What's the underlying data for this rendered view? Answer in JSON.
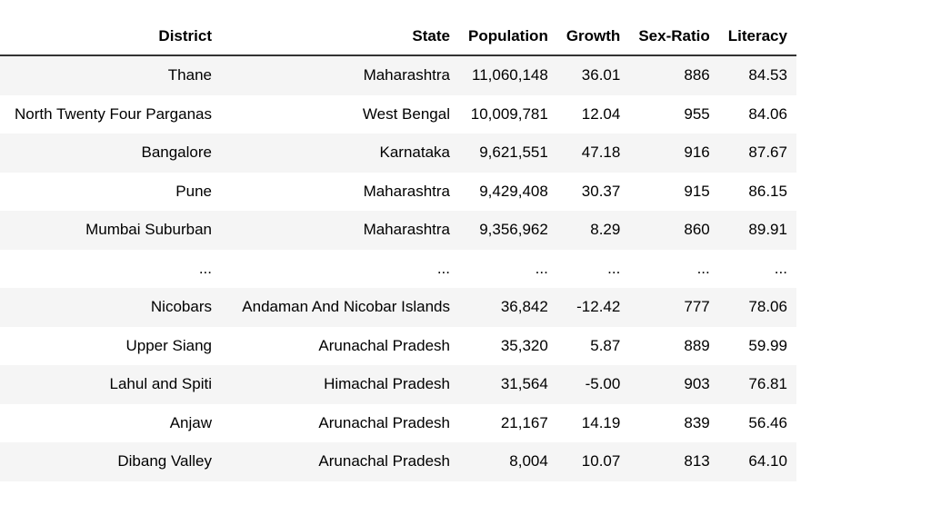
{
  "columns": [
    "District",
    "State",
    "Population",
    "Growth",
    "Sex-Ratio",
    "Literacy"
  ],
  "rows": [
    [
      "Thane",
      "Maharashtra",
      "11,060,148",
      "36.01",
      "886",
      "84.53"
    ],
    [
      "North Twenty Four Parganas",
      "West Bengal",
      "10,009,781",
      "12.04",
      "955",
      "84.06"
    ],
    [
      "Bangalore",
      "Karnataka",
      "9,621,551",
      "47.18",
      "916",
      "87.67"
    ],
    [
      "Pune",
      "Maharashtra",
      "9,429,408",
      "30.37",
      "915",
      "86.15"
    ],
    [
      "Mumbai Suburban",
      "Maharashtra",
      "9,356,962",
      "8.29",
      "860",
      "89.91"
    ],
    [
      "...",
      "...",
      "...",
      "...",
      "...",
      "..."
    ],
    [
      "Nicobars",
      "Andaman And Nicobar Islands",
      "36,842",
      "-12.42",
      "777",
      "78.06"
    ],
    [
      "Upper Siang",
      "Arunachal Pradesh",
      "35,320",
      "5.87",
      "889",
      "59.99"
    ],
    [
      "Lahul and Spiti",
      "Himachal Pradesh",
      "31,564",
      "-5.00",
      "903",
      "76.81"
    ],
    [
      "Anjaw",
      "Arunachal Pradesh",
      "21,167",
      "14.19",
      "839",
      "56.46"
    ],
    [
      "Dibang Valley",
      "Arunachal Pradesh",
      "8,004",
      "10.07",
      "813",
      "64.10"
    ]
  ]
}
